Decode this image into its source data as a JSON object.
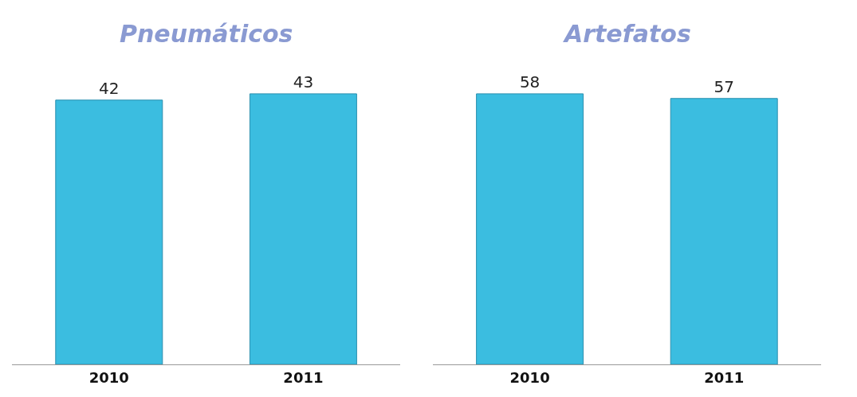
{
  "chart_data": [
    {
      "type": "bar",
      "title": "Pneumáticos",
      "categories": [
        "2010",
        "2011"
      ],
      "values": [
        42,
        43
      ],
      "color": "#3bbde0",
      "data_labels": true,
      "tick_labels": "x"
    },
    {
      "type": "bar",
      "title": "Artefatos",
      "categories": [
        "2010",
        "2011"
      ],
      "values": [
        58,
        57
      ],
      "color": "#3bbde0",
      "data_labels": true,
      "tick_labels": "x"
    }
  ]
}
